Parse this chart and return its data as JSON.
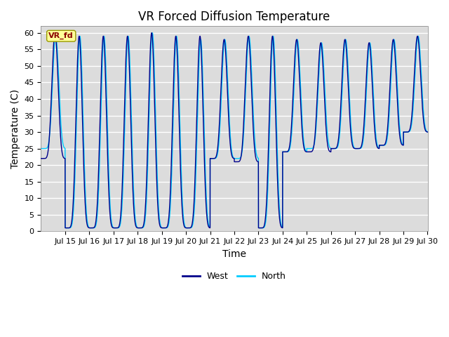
{
  "title": "VR Forced Diffusion Temperature",
  "ylabel": "Temperature (C)",
  "xlabel": "Time",
  "legend_label": "VR_fd",
  "ylim": [
    0,
    62
  ],
  "xlim_days": [
    14,
    30
  ],
  "xtick_days": [
    15,
    16,
    17,
    18,
    19,
    20,
    21,
    22,
    23,
    24,
    25,
    26,
    27,
    28,
    29,
    30
  ],
  "ytick_vals": [
    0,
    5,
    10,
    15,
    20,
    25,
    30,
    35,
    40,
    45,
    50,
    55,
    60
  ],
  "west_color": "#00008B",
  "north_color": "#00CCFF",
  "bg_color": "#DCDCDC",
  "grid_color": "white",
  "legend_box_color": "#FFFF99",
  "legend_box_text_color": "#8B0000",
  "title_fontsize": 12,
  "axis_label_fontsize": 10,
  "tick_fontsize": 8,
  "line_width": 1.0,
  "ppd": 500,
  "west_peaks": [
    60,
    59,
    59,
    59,
    60,
    59,
    59,
    58,
    59,
    59,
    58,
    57,
    58,
    57,
    58,
    59
  ],
  "west_mins": [
    22,
    1,
    1,
    1,
    1,
    1,
    1,
    22,
    21,
    1,
    24,
    24,
    25,
    25,
    26,
    30
  ],
  "north_peaks": [
    59,
    59,
    59,
    59,
    60,
    59,
    58,
    58,
    59,
    59,
    58,
    57,
    58,
    57,
    58,
    59
  ],
  "north_mins": [
    25,
    1,
    1,
    1,
    1,
    1,
    1,
    22,
    22,
    1,
    24,
    25,
    25,
    25,
    26,
    30
  ],
  "peak_time": 0.58,
  "north_phase_shift": 0.03
}
